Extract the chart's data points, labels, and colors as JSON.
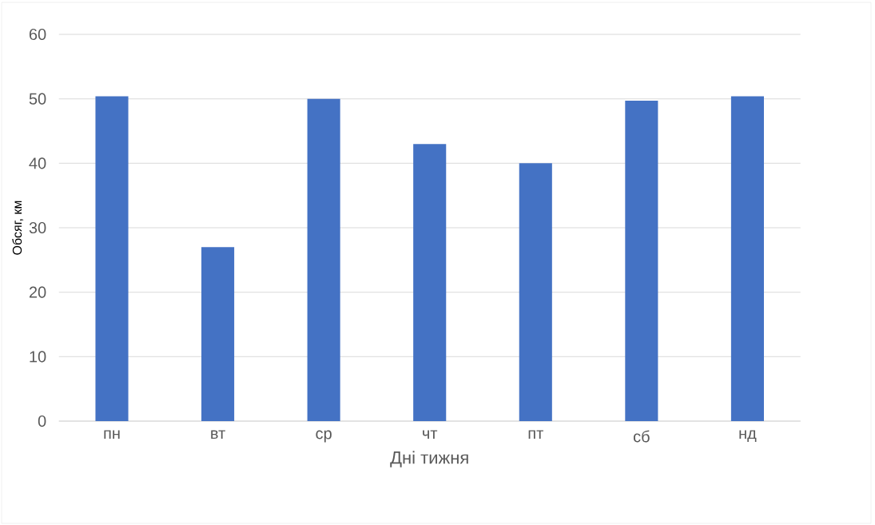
{
  "chart_data": {
    "type": "bar",
    "xlabel": "Дні тижня",
    "ylabel": "Обсяг, км",
    "categories": [
      "пн",
      "вт",
      "ср",
      "чт",
      "пт",
      "сб",
      "нд"
    ],
    "values": [
      50.4,
      27,
      50,
      43,
      40,
      49.7,
      50.4
    ],
    "color": "#4472c4",
    "ylim": [
      0,
      60
    ],
    "yticks": [
      0,
      10,
      20,
      30,
      40,
      50,
      60
    ],
    "grid": "y"
  }
}
